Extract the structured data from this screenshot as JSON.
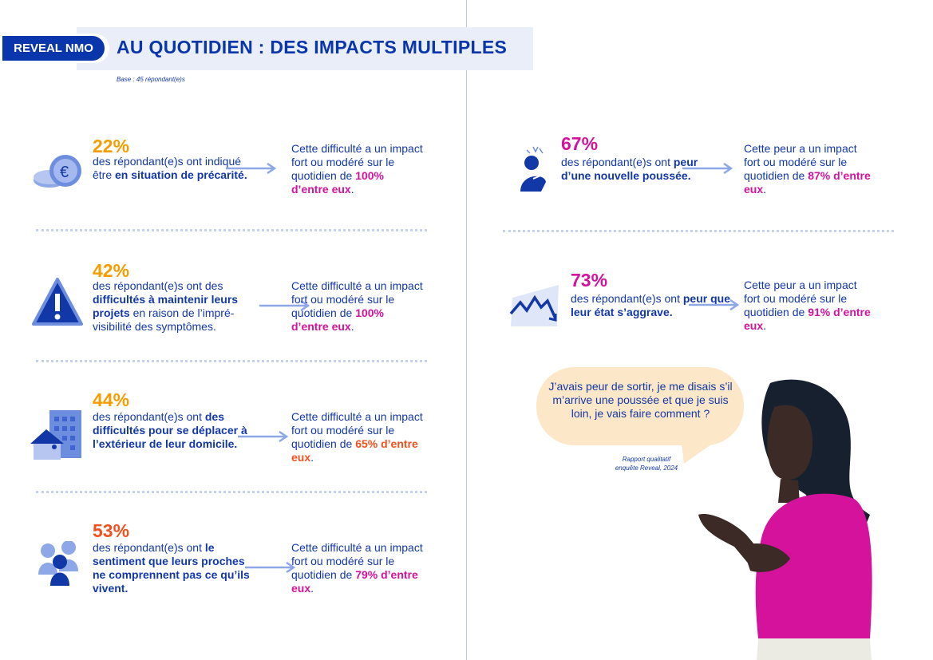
{
  "header": {
    "badge": "REVEAL NMO",
    "title": "AU QUOTIDIEN : DES IMPACTS MULTIPLES",
    "base": "Base : 45 répondant(e)s"
  },
  "colors": {
    "blue": "#0a36ac",
    "orange": "#f59c00",
    "red": "#f2501e",
    "magenta": "#d4129c"
  },
  "items": [
    {
      "icon": "coins-euro-icon",
      "pct": "22%",
      "pct_color": "#f59c00",
      "desc": [
        {
          "t": "des répondant(e)s ont indiqué être ",
          "b": false
        },
        {
          "t": "en situation de précarité.",
          "b": true
        }
      ],
      "result": "Cette difficulté a un impact fort ou modéré sur le quotidien de ",
      "highlight": "100% d’entre eux",
      "hl_color": "#d4129c",
      "end": "."
    },
    {
      "icon": "warning-icon",
      "pct": "42%",
      "pct_color": "#f59c00",
      "desc": [
        {
          "t": "des répondant(e)s ont des ",
          "b": false
        },
        {
          "t": "difficultés à maintenir leurs projets",
          "b": true
        },
        {
          "t": " en raison de l’impré-visibilité des symptômes.",
          "b": false
        }
      ],
      "result": "Cette difficulté a un impact fort ou modéré sur le quotidien de ",
      "highlight": "100% d’entre eux",
      "hl_color": "#d4129c",
      "end": "."
    },
    {
      "icon": "buildings-house-icon",
      "pct": "44%",
      "pct_color": "#f59c00",
      "desc": [
        {
          "t": "des répondant(e)s ont ",
          "b": false
        },
        {
          "t": "des difficultés pour se déplacer à l’extérieur de leur domicile.",
          "b": true
        }
      ],
      "result": "Cette difficulté a un impact fort ou modéré sur le quotidien de ",
      "highlight": "65% d’entre eux",
      "hl_color": "#f2501e",
      "end": "."
    },
    {
      "icon": "people-group-icon",
      "pct": "53%",
      "pct_color": "#f2501e",
      "desc": [
        {
          "t": "des répondant(e)s ont ",
          "b": false
        },
        {
          "t": "le sentiment que leurs proches ne comprennent pas ce qu’ils vivent.",
          "b": true
        }
      ],
      "result": "Cette difficulté a un impact fort ou modéré sur le quotidien de ",
      "highlight": "79% d’entre eux",
      "hl_color": "#d4129c",
      "end": "."
    },
    {
      "icon": "anxious-person-icon",
      "pct": "67%",
      "pct_color": "#d4129c",
      "desc": [
        {
          "t": "des répondant(e)s ont ",
          "b": false
        },
        {
          "t": "peur d’une nouvelle poussée.",
          "b": true
        }
      ],
      "result": "Cette peur a un impact fort ou modéré sur le quotidien de ",
      "highlight": "87% d’entre eux",
      "hl_color": "#d4129c",
      "end": "."
    },
    {
      "icon": "declining-chart-icon",
      "pct": "73%",
      "pct_color": "#d4129c",
      "desc": [
        {
          "t": "des répondant(e)s ont ",
          "b": false
        },
        {
          "t": "peur que leur état s’aggrave.",
          "b": true
        }
      ],
      "result": "Cette peur a un impact fort ou modéré sur le quotidien de ",
      "highlight": "91% d’entre eux",
      "hl_color": "#d4129c",
      "end": "."
    }
  ],
  "quote": {
    "text": "J’avais peur de sortir, je me disais s’il m’arrive une poussée et que je suis loin, je vais faire comment ?",
    "source_line1": "Rapport qualitatif",
    "source_line2": "enquête Reveal, 2024"
  }
}
